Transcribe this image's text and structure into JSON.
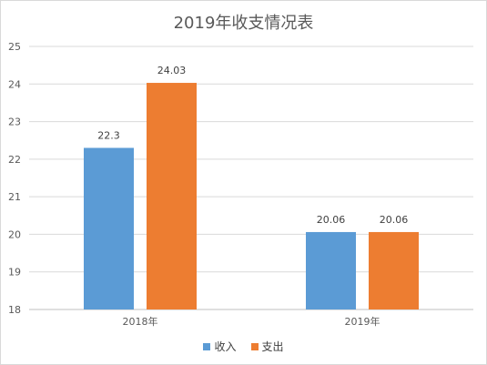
{
  "chart_data": {
    "type": "bar",
    "title": "2019年收支情况表",
    "categories": [
      "2018年",
      "2019年"
    ],
    "series": [
      {
        "name": "收入",
        "values": [
          22.3,
          20.06
        ],
        "labels": [
          "22.3",
          "20.06"
        ],
        "color": "#5b9bd5"
      },
      {
        "name": "支出",
        "values": [
          24.03,
          20.06
        ],
        "labels": [
          "24.03",
          "20.06"
        ],
        "color": "#ed7d31"
      }
    ],
    "ylim": [
      18,
      25
    ],
    "yticks": [
      "18",
      "19",
      "20",
      "21",
      "22",
      "23",
      "24",
      "25"
    ],
    "grid": true,
    "legend_position": "bottom",
    "xlabel": "",
    "ylabel": ""
  }
}
